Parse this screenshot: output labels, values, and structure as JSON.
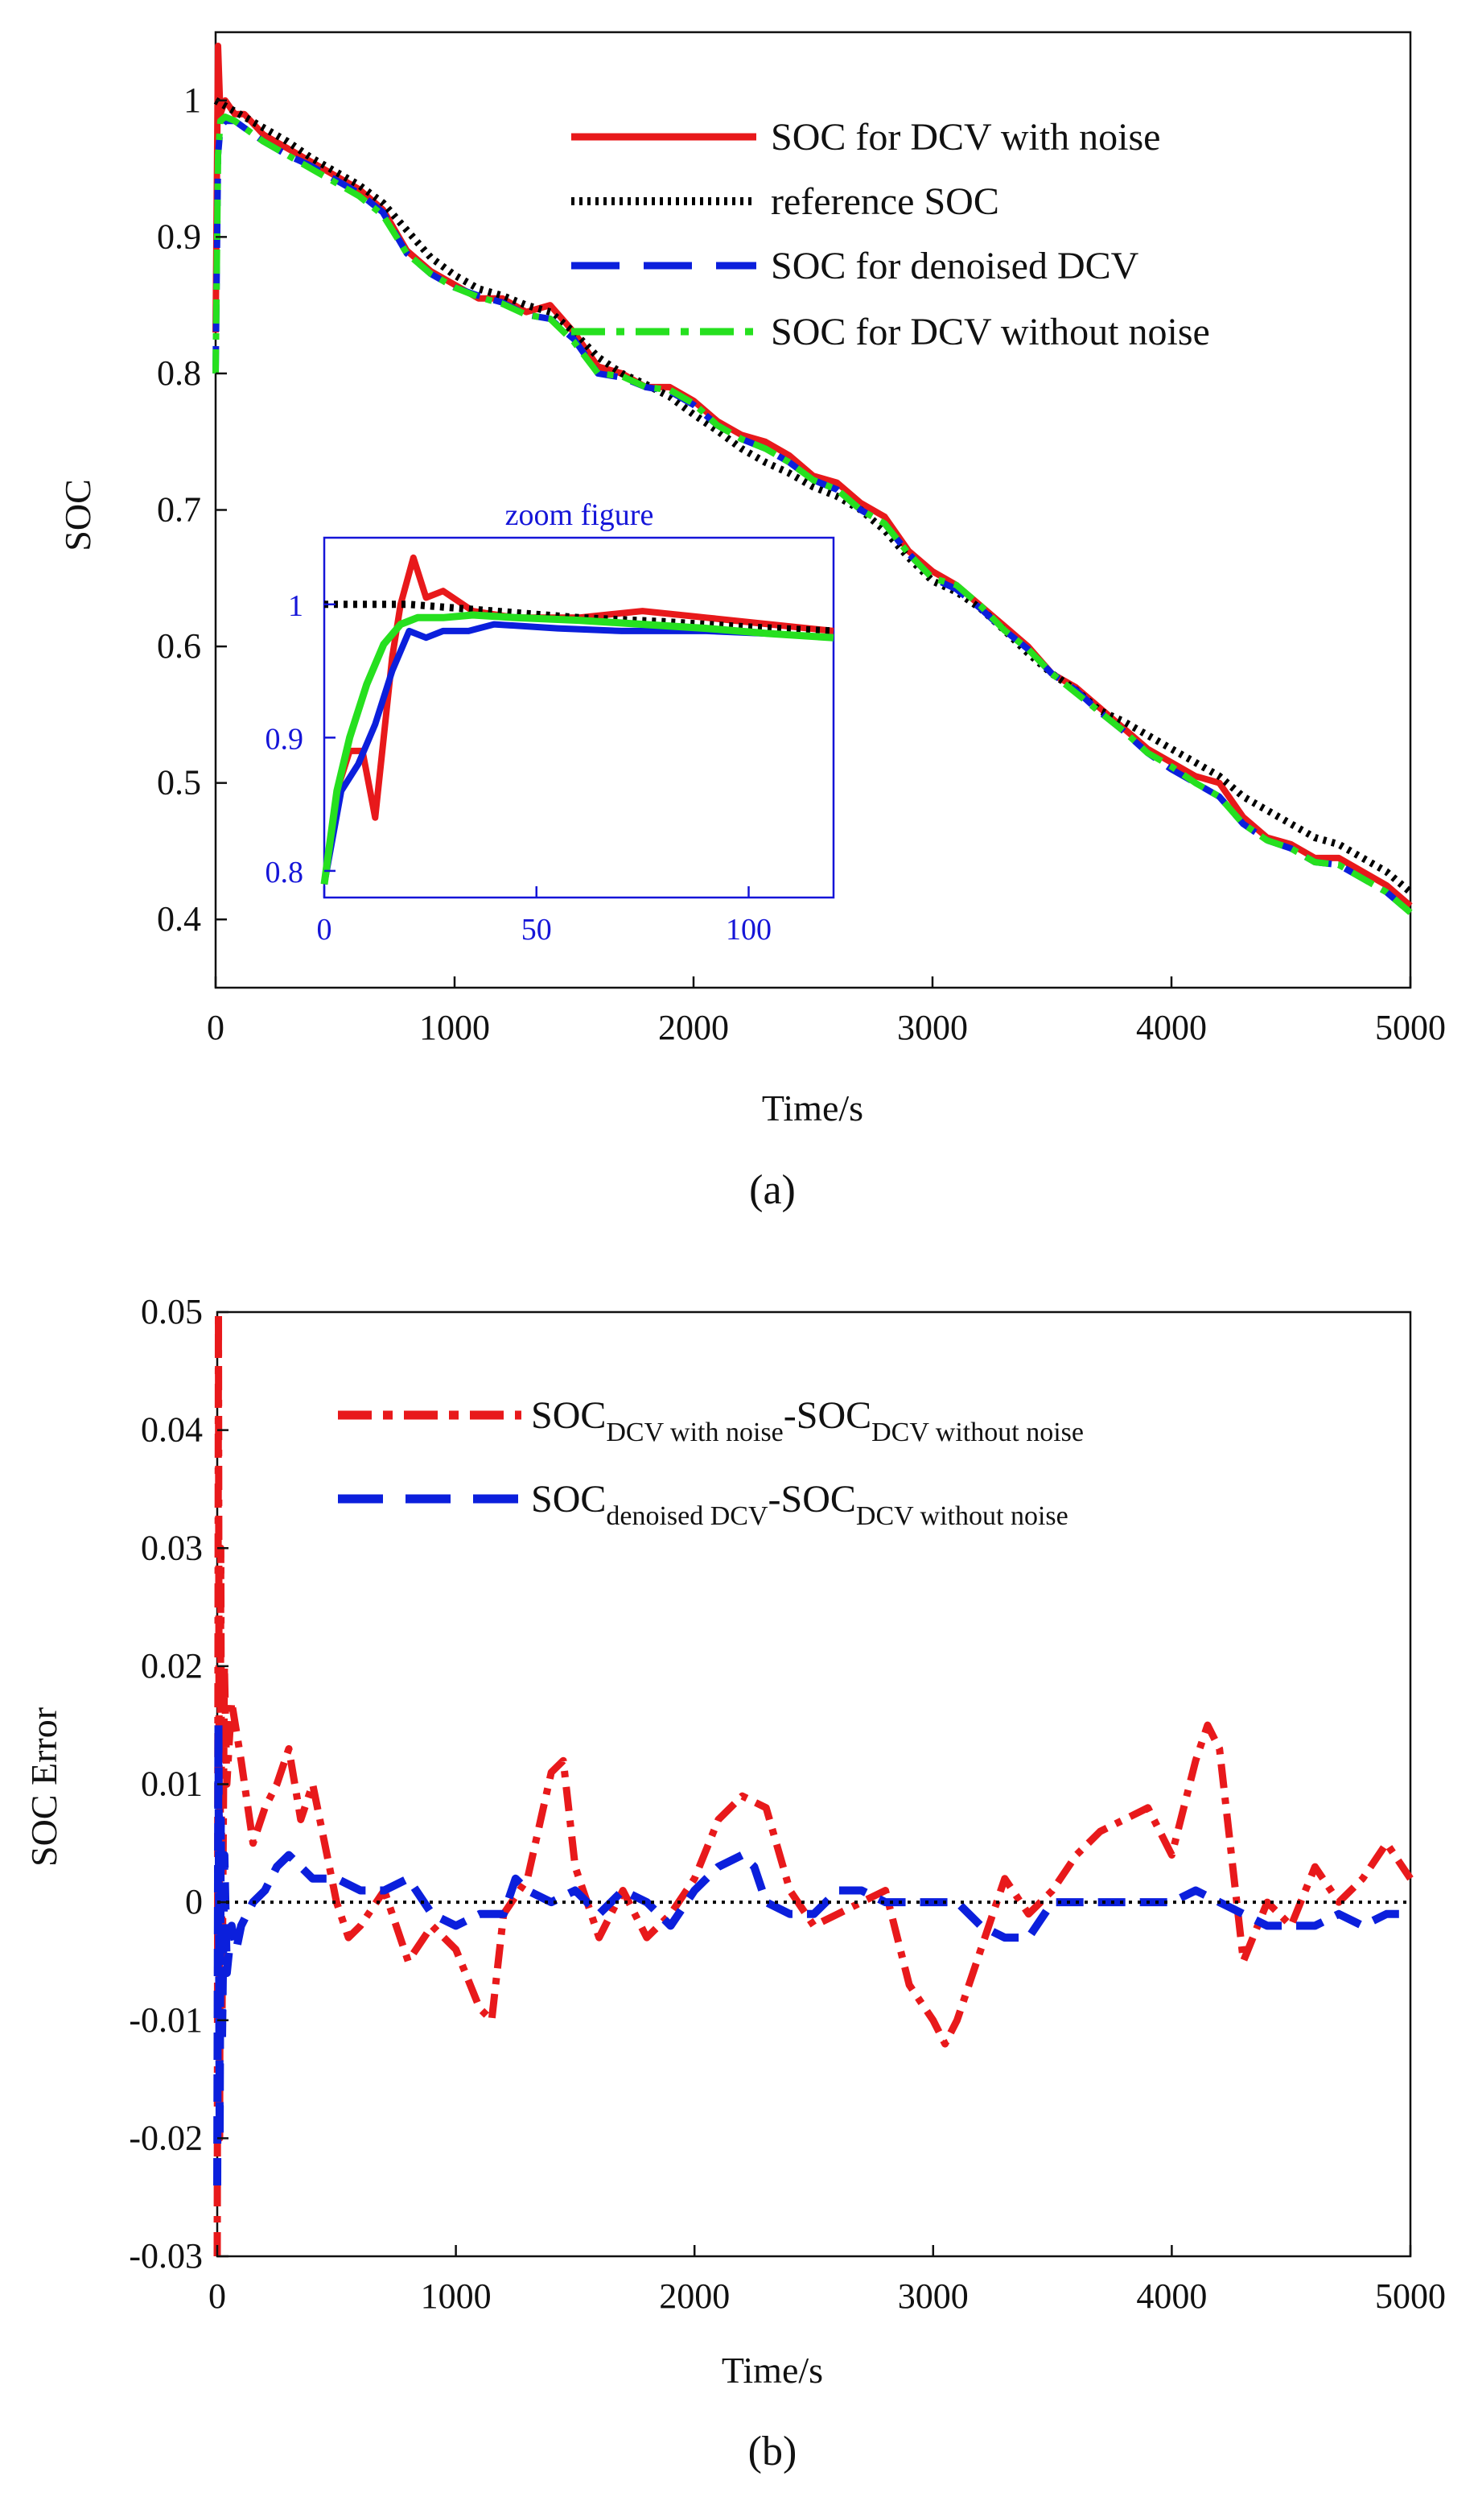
{
  "colors": {
    "noise": "#e8191b",
    "reference": "#000000",
    "denoised": "#0b1fdc",
    "without_noise": "#26e01f",
    "inset_axis": "#1515d8",
    "zero_line": "#000000"
  },
  "chart_data": [
    {
      "type": "line",
      "caption": "(a)",
      "xlabel": "Time/s",
      "ylabel": "SOC",
      "xlim": [
        0,
        5000
      ],
      "ylim": [
        0.35,
        1.05
      ],
      "xticks": [
        0,
        1000,
        2000,
        3000,
        4000,
        5000
      ],
      "yticks": [
        0.4,
        0.5,
        0.6,
        0.7,
        0.8,
        0.9,
        1
      ],
      "xtick_labels": [
        "0",
        "1000",
        "2000",
        "3000",
        "4000",
        "5000"
      ],
      "ytick_labels": [
        "0.4",
        "0.5",
        "0.6",
        "0.7",
        "0.8",
        "0.9",
        "1"
      ],
      "grid": false,
      "legend_position": "top-right",
      "series": [
        {
          "name": "SOC for DCV with noise",
          "style": "solid",
          "x": [
            0,
            10,
            20,
            40,
            80,
            120,
            200,
            300,
            400,
            500,
            600,
            700,
            800,
            900,
            1000,
            1100,
            1200,
            1300,
            1400,
            1500,
            1600,
            1700,
            1800,
            1900,
            2000,
            2100,
            2200,
            2300,
            2400,
            2500,
            2600,
            2700,
            2800,
            2900,
            3000,
            3100,
            3200,
            3300,
            3400,
            3500,
            3600,
            3700,
            3800,
            3900,
            4000,
            4100,
            4200,
            4300,
            4400,
            4500,
            4600,
            4700,
            4800,
            4900,
            5000
          ],
          "y": [
            0.83,
            1.04,
            0.99,
            1.0,
            0.99,
            0.99,
            0.975,
            0.965,
            0.955,
            0.945,
            0.935,
            0.92,
            0.89,
            0.875,
            0.865,
            0.855,
            0.855,
            0.845,
            0.85,
            0.83,
            0.805,
            0.8,
            0.79,
            0.79,
            0.78,
            0.765,
            0.755,
            0.75,
            0.74,
            0.725,
            0.72,
            0.705,
            0.695,
            0.67,
            0.655,
            0.645,
            0.63,
            0.615,
            0.6,
            0.58,
            0.57,
            0.555,
            0.54,
            0.525,
            0.515,
            0.505,
            0.5,
            0.475,
            0.46,
            0.455,
            0.445,
            0.445,
            0.435,
            0.425,
            0.41
          ]
        },
        {
          "name": "reference SOC",
          "style": "dotted",
          "x": [
            0,
            100,
            200,
            300,
            400,
            500,
            600,
            700,
            800,
            900,
            1000,
            1100,
            1200,
            1300,
            1400,
            1500,
            1600,
            1700,
            1800,
            1900,
            2000,
            2100,
            2200,
            2300,
            2400,
            2500,
            2600,
            2700,
            2800,
            2900,
            3000,
            3100,
            3200,
            3300,
            3400,
            3500,
            3600,
            3700,
            3800,
            3900,
            4000,
            4100,
            4200,
            4300,
            4400,
            4500,
            4600,
            4700,
            4800,
            4900,
            5000
          ],
          "y": [
            1.0,
            0.99,
            0.98,
            0.97,
            0.958,
            0.948,
            0.938,
            0.925,
            0.905,
            0.885,
            0.872,
            0.862,
            0.857,
            0.85,
            0.845,
            0.83,
            0.812,
            0.8,
            0.792,
            0.783,
            0.77,
            0.758,
            0.745,
            0.735,
            0.727,
            0.717,
            0.71,
            0.7,
            0.685,
            0.665,
            0.648,
            0.64,
            0.628,
            0.612,
            0.595,
            0.58,
            0.568,
            0.553,
            0.545,
            0.535,
            0.525,
            0.515,
            0.505,
            0.49,
            0.48,
            0.47,
            0.46,
            0.455,
            0.445,
            0.435,
            0.42
          ]
        },
        {
          "name": "SOC for denoised DCV",
          "style": "dashed",
          "x": [
            0,
            10,
            20,
            40,
            80,
            120,
            200,
            300,
            400,
            500,
            600,
            700,
            800,
            900,
            1000,
            1100,
            1200,
            1300,
            1400,
            1500,
            1600,
            1700,
            1800,
            1900,
            2000,
            2100,
            2200,
            2300,
            2400,
            2500,
            2600,
            2700,
            2800,
            2900,
            3000,
            3100,
            3200,
            3300,
            3400,
            3500,
            3600,
            3700,
            3800,
            3900,
            4000,
            4100,
            4200,
            4300,
            4400,
            4500,
            4600,
            4700,
            4800,
            4900,
            5000
          ],
          "y": [
            0.8,
            0.96,
            0.98,
            0.985,
            0.985,
            0.98,
            0.97,
            0.96,
            0.952,
            0.942,
            0.932,
            0.918,
            0.888,
            0.873,
            0.863,
            0.857,
            0.852,
            0.843,
            0.84,
            0.825,
            0.8,
            0.797,
            0.79,
            0.787,
            0.777,
            0.762,
            0.752,
            0.745,
            0.735,
            0.722,
            0.715,
            0.7,
            0.69,
            0.668,
            0.65,
            0.642,
            0.628,
            0.612,
            0.598,
            0.58,
            0.568,
            0.552,
            0.538,
            0.522,
            0.51,
            0.5,
            0.49,
            0.47,
            0.458,
            0.452,
            0.442,
            0.44,
            0.43,
            0.42,
            0.405
          ]
        },
        {
          "name": "SOC for DCV without noise",
          "style": "dashdot",
          "x": [
            0,
            10,
            20,
            40,
            80,
            120,
            200,
            300,
            400,
            500,
            600,
            700,
            800,
            900,
            1000,
            1100,
            1200,
            1300,
            1400,
            1500,
            1600,
            1700,
            1800,
            1900,
            2000,
            2100,
            2200,
            2300,
            2400,
            2500,
            2600,
            2700,
            2800,
            2900,
            3000,
            3100,
            3200,
            3300,
            3400,
            3500,
            3600,
            3700,
            3800,
            3900,
            4000,
            4100,
            4200,
            4300,
            4400,
            4500,
            4600,
            4700,
            4800,
            4900,
            5000
          ],
          "y": [
            0.8,
            0.96,
            0.985,
            0.988,
            0.985,
            0.98,
            0.97,
            0.96,
            0.95,
            0.94,
            0.93,
            0.916,
            0.888,
            0.873,
            0.863,
            0.856,
            0.851,
            0.843,
            0.84,
            0.823,
            0.8,
            0.798,
            0.79,
            0.788,
            0.778,
            0.762,
            0.752,
            0.745,
            0.735,
            0.722,
            0.715,
            0.7,
            0.69,
            0.668,
            0.65,
            0.645,
            0.63,
            0.612,
            0.598,
            0.58,
            0.566,
            0.552,
            0.538,
            0.522,
            0.512,
            0.5,
            0.49,
            0.47,
            0.458,
            0.452,
            0.442,
            0.44,
            0.43,
            0.42,
            0.405
          ]
        }
      ],
      "inset": {
        "title": "zoom figure",
        "xlim": [
          0,
          120
        ],
        "ylim": [
          0.78,
          1.05
        ],
        "xticks": [
          0,
          50,
          100
        ],
        "yticks": [
          0.8,
          0.9,
          1
        ],
        "xtick_labels": [
          "0",
          "50",
          "100"
        ],
        "ytick_labels": [
          "0.8",
          "0.9",
          "1"
        ],
        "series": [
          {
            "name": "SOC for DCV with noise",
            "x": [
              0,
              3,
              6,
              9,
              12,
              14,
              16,
              18,
              21,
              24,
              28,
              35,
              45,
              60,
              75,
              90,
              105,
              120
            ],
            "y": [
              0.79,
              0.86,
              0.89,
              0.89,
              0.84,
              0.9,
              0.96,
              1.0,
              1.035,
              1.005,
              1.01,
              0.995,
              0.99,
              0.99,
              0.995,
              0.99,
              0.985,
              0.98
            ]
          },
          {
            "name": "reference SOC",
            "x": [
              0,
              20,
              40,
              60,
              80,
              100,
              120
            ],
            "y": [
              1.0,
              1.0,
              0.995,
              0.99,
              0.987,
              0.983,
              0.98
            ]
          },
          {
            "name": "SOC for denoised DCV",
            "x": [
              0,
              4,
              8,
              12,
              16,
              20,
              24,
              28,
              34,
              40,
              55,
              70,
              90,
              105,
              120
            ],
            "y": [
              0.79,
              0.86,
              0.88,
              0.91,
              0.95,
              0.98,
              0.975,
              0.98,
              0.98,
              0.985,
              0.982,
              0.98,
              0.98,
              0.978,
              0.975
            ]
          },
          {
            "name": "SOC for DCV without noise",
            "x": [
              0,
              3,
              6,
              10,
              14,
              18,
              22,
              28,
              35,
              45,
              60,
              75,
              90,
              105,
              120
            ],
            "y": [
              0.79,
              0.86,
              0.9,
              0.94,
              0.97,
              0.985,
              0.99,
              0.99,
              0.992,
              0.99,
              0.988,
              0.985,
              0.982,
              0.978,
              0.975
            ]
          }
        ]
      }
    },
    {
      "type": "line",
      "caption": "(b)",
      "xlabel": "Time/s",
      "ylabel": "SOC Error",
      "xlim": [
        0,
        5000
      ],
      "ylim": [
        -0.03,
        0.05
      ],
      "xticks": [
        0,
        1000,
        2000,
        3000,
        4000,
        5000
      ],
      "yticks": [
        -0.03,
        -0.02,
        -0.01,
        0,
        0.01,
        0.02,
        0.03,
        0.04,
        0.05
      ],
      "xtick_labels": [
        "0",
        "1000",
        "2000",
        "3000",
        "4000",
        "5000"
      ],
      "ytick_labels": [
        "-0.03",
        "-0.02",
        "-0.01",
        "0",
        "0.01",
        "0.02",
        "0.03",
        "0.04",
        "0.05"
      ],
      "grid": false,
      "legend_position": "top-right",
      "legend": [
        {
          "base1": "SOC",
          "sub1": "DCV with noise",
          "mid": "-SOC",
          "sub2": "DCV without noise"
        },
        {
          "base1": "SOC",
          "sub1": "denoised DCV",
          "mid": "-SOC",
          "sub2": "DCV without noise"
        }
      ],
      "series": [
        {
          "name": "SOCDCV with noise-SOCDCV without noise",
          "style": "dashdot",
          "x": [
            0,
            5,
            10,
            15,
            20,
            30,
            40,
            60,
            100,
            150,
            200,
            250,
            300,
            350,
            400,
            450,
            500,
            550,
            600,
            700,
            800,
            900,
            1000,
            1100,
            1150,
            1200,
            1300,
            1400,
            1450,
            1500,
            1600,
            1700,
            1800,
            1900,
            2000,
            2100,
            2200,
            2300,
            2400,
            2500,
            2600,
            2700,
            2800,
            2900,
            3000,
            3050,
            3100,
            3200,
            3300,
            3400,
            3500,
            3600,
            3700,
            3800,
            3900,
            4000,
            4100,
            4150,
            4200,
            4300,
            4400,
            4500,
            4600,
            4700,
            4800,
            4900,
            5000
          ],
          "y": [
            -0.03,
            0.05,
            -0.02,
            0.03,
            -0.01,
            0.02,
            0.01,
            0.017,
            0.012,
            0.005,
            0.008,
            0.01,
            0.013,
            0.007,
            0.01,
            0.005,
            0.0,
            -0.003,
            -0.002,
            0.001,
            -0.005,
            -0.002,
            -0.004,
            -0.009,
            -0.01,
            -0.001,
            0.002,
            0.011,
            0.012,
            0.003,
            -0.003,
            0.001,
            -0.003,
            -0.001,
            0.002,
            0.007,
            0.009,
            0.008,
            0.001,
            -0.002,
            -0.001,
            0.0,
            0.001,
            -0.007,
            -0.01,
            -0.012,
            -0.01,
            -0.004,
            0.002,
            -0.001,
            0.001,
            0.004,
            0.006,
            0.007,
            0.008,
            0.004,
            0.012,
            0.015,
            0.013,
            -0.005,
            0.0,
            -0.002,
            0.003,
            0.0,
            0.002,
            0.005,
            0.002
          ]
        },
        {
          "name": "SOCdenoised DCV-SOCDCV without noise",
          "style": "dashed",
          "x": [
            0,
            5,
            10,
            15,
            20,
            30,
            40,
            60,
            80,
            100,
            150,
            200,
            250,
            300,
            350,
            400,
            500,
            600,
            700,
            800,
            900,
            1000,
            1100,
            1200,
            1250,
            1300,
            1400,
            1500,
            1600,
            1700,
            1800,
            1900,
            2000,
            2100,
            2200,
            2250,
            2300,
            2400,
            2500,
            2600,
            2700,
            2800,
            2900,
            3000,
            3100,
            3200,
            3300,
            3400,
            3500,
            3600,
            3700,
            3800,
            3900,
            4000,
            4100,
            4200,
            4300,
            4400,
            4500,
            4600,
            4700,
            4800,
            4900,
            5000
          ],
          "y": [
            -0.024,
            0.015,
            -0.02,
            0.007,
            -0.012,
            0.004,
            -0.006,
            -0.002,
            -0.004,
            -0.002,
            0.0,
            0.001,
            0.003,
            0.004,
            0.003,
            0.002,
            0.002,
            0.001,
            0.001,
            0.002,
            -0.001,
            -0.002,
            -0.001,
            -0.001,
            0.002,
            0.001,
            0.0,
            0.001,
            -0.001,
            0.001,
            0.0,
            -0.002,
            0.001,
            0.003,
            0.004,
            0.003,
            0.0,
            -0.001,
            -0.001,
            0.001,
            0.001,
            0.0,
            0.0,
            0.0,
            0.0,
            -0.002,
            -0.003,
            -0.003,
            0.0,
            0.0,
            0.0,
            0.0,
            0.0,
            0.0,
            0.001,
            0.0,
            -0.001,
            -0.002,
            -0.002,
            -0.002,
            -0.001,
            -0.002,
            -0.001,
            -0.001
          ]
        },
        {
          "name": "zero reference",
          "style": "dotted",
          "x": [
            0,
            5000
          ],
          "y": [
            0,
            0
          ]
        }
      ]
    }
  ]
}
